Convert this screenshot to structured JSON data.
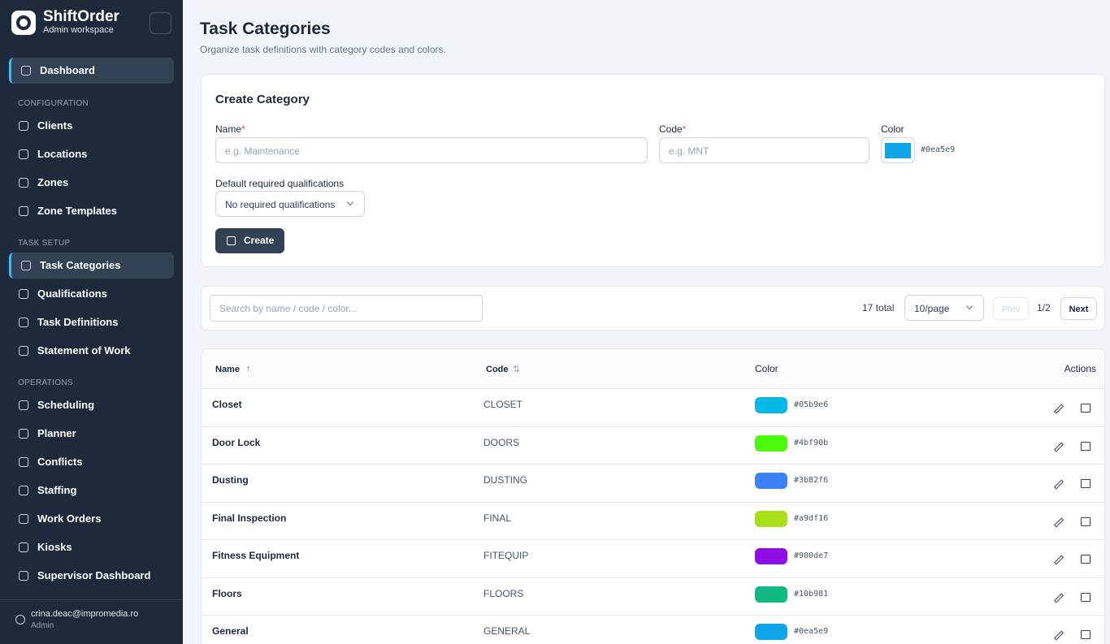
{
  "sidebar": {
    "brand": "ShiftOrder",
    "subtitle": "Admin workspace",
    "top_item": {
      "label": "Dashboard",
      "active": true
    },
    "sections": [
      {
        "title": "CONFIGURATION",
        "items": [
          {
            "label": "Clients"
          },
          {
            "label": "Locations"
          },
          {
            "label": "Zones"
          },
          {
            "label": "Zone Templates"
          }
        ]
      },
      {
        "title": "TASK SETUP",
        "items": [
          {
            "label": "Task Categories",
            "active": true
          },
          {
            "label": "Qualifications"
          },
          {
            "label": "Task Definitions"
          },
          {
            "label": "Statement of Work"
          }
        ]
      },
      {
        "title": "OPERATIONS",
        "items": [
          {
            "label": "Scheduling"
          },
          {
            "label": "Planner"
          },
          {
            "label": "Conflicts"
          },
          {
            "label": "Staffing"
          },
          {
            "label": "Work Orders"
          },
          {
            "label": "Kiosks"
          },
          {
            "label": "Supervisor Dashboard"
          }
        ]
      }
    ],
    "user": {
      "email": "crina.deac@impromedia.ro",
      "role": "Admin"
    }
  },
  "page": {
    "title": "Task Categories",
    "subtitle": "Organize task definitions with category codes and colors."
  },
  "create_form": {
    "title": "Create Category",
    "fields": [
      {
        "label": "Name",
        "required": "*",
        "placeholder": "e.g. Maintenance"
      },
      {
        "label": "Code",
        "required": "*",
        "placeholder": "e.g. MNT"
      },
      {
        "label": "Color",
        "value": "#0ea5e9"
      }
    ],
    "qualifications_label": "Default required qualifications",
    "qualifications_value": "No required qualifications",
    "button": "Create"
  },
  "toolbar": {
    "search_placeholder": "Search by name / code / color...",
    "total": "17 total",
    "page_size": "10/page",
    "prev": "Prev",
    "page": "1/2",
    "next": "Next"
  },
  "table": {
    "columns": [
      "Name",
      "Code",
      "Color",
      "Actions"
    ],
    "rows": [
      [
        "Closet",
        "CLOSET",
        "#05b9e6"
      ],
      [
        "Door Lock",
        "DOORS",
        "#4bf90b"
      ],
      [
        "Dusting",
        "DUSTING",
        "#3b82f6"
      ],
      [
        "Final Inspection",
        "FINAL",
        "#a9df16"
      ],
      [
        "Fitness Equipment",
        "FITEQUIP",
        "#900de7"
      ],
      [
        "Floors",
        "FLOORS",
        "#10b981"
      ],
      [
        "General",
        "GENERAL",
        "#0ea5e9"
      ]
    ]
  }
}
